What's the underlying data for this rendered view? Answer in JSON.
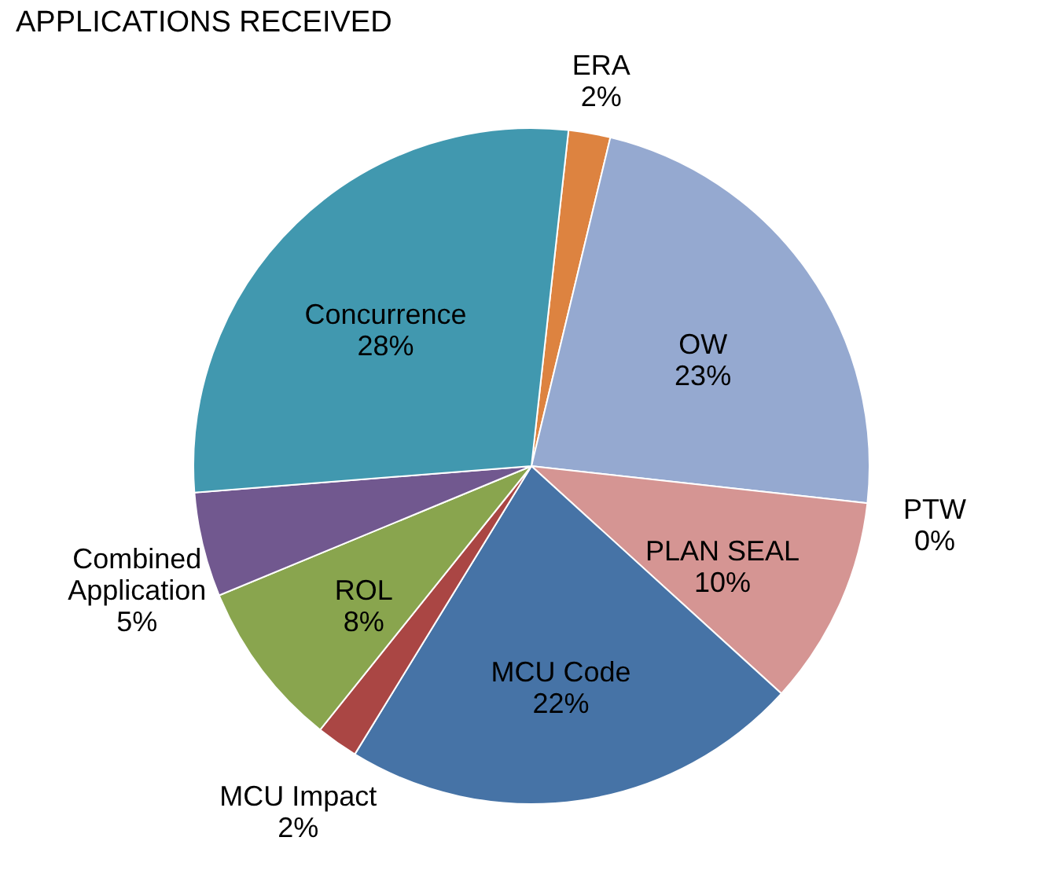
{
  "chart_data": {
    "type": "pie",
    "title": "APPLICATIONS RECEIVED",
    "categories": [
      "ERA",
      "OW",
      "PTW",
      "PLAN SEAL",
      "MCU Code",
      "MCU Impact",
      "ROL",
      "Combined Application",
      "Concurrence"
    ],
    "values": [
      2,
      23,
      0,
      10,
      22,
      2,
      8,
      5,
      28
    ],
    "value_labels": [
      "2%",
      "23%",
      "0%",
      "10%",
      "22%",
      "2%",
      "8%",
      "5%",
      "28%"
    ],
    "colors": [
      "#dd8340",
      "#95a9d0",
      "#7f7f7f",
      "#d59593",
      "#4673a6",
      "#aa4644",
      "#89a54e",
      "#71588f",
      "#4198af"
    ],
    "legend": false
  }
}
